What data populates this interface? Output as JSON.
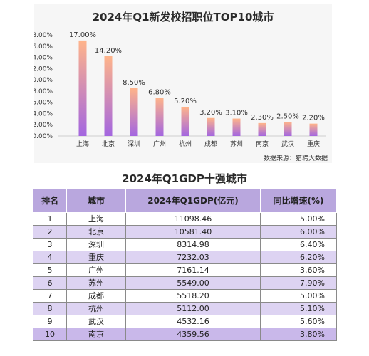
{
  "chart_data": {
    "type": "bar",
    "title": "2024年Q1新发校招职位TOP10城市",
    "categories": [
      "上海",
      "北京",
      "深圳",
      "广州",
      "杭州",
      "成都",
      "苏州",
      "南京",
      "武汉",
      "重庆"
    ],
    "values": [
      17.0,
      14.2,
      8.5,
      6.8,
      5.2,
      3.2,
      3.1,
      2.3,
      2.5,
      2.2
    ],
    "value_labels": [
      "17.00%",
      "14.20%",
      "8.50%",
      "6.80%",
      "5.20%",
      "3.20%",
      "3.10%",
      "2.30%",
      "2.50%",
      "2.20%"
    ],
    "y_ticks": [
      "0.00%",
      "2.00%",
      "4.00%",
      "6.00%",
      "8.00%",
      "10.00%",
      "12.00%",
      "14.00%",
      "16.00%",
      "18.00%"
    ],
    "ylim": [
      0,
      18
    ],
    "grid": false,
    "bar_gradient": [
      "#ffb48a",
      "#a366e0"
    ],
    "source": "数据来源：猎聘大数据"
  },
  "table": {
    "title": "2024年Q1GDP十强城市",
    "headers": [
      "排名",
      "城市",
      "2024年Q1GDP(亿元)",
      "同比增速(%)"
    ],
    "rows": [
      [
        "1",
        "上海",
        "11098.46",
        "5.00%"
      ],
      [
        "2",
        "北京",
        "10581.40",
        "6.00%"
      ],
      [
        "3",
        "深圳",
        "8314.98",
        "6.40%"
      ],
      [
        "4",
        "重庆",
        "7232.03",
        "6.20%"
      ],
      [
        "5",
        "广州",
        "7161.14",
        "3.60%"
      ],
      [
        "6",
        "苏州",
        "5549.00",
        "7.90%"
      ],
      [
        "7",
        "成都",
        "5518.20",
        "5.00%"
      ],
      [
        "8",
        "杭州",
        "5112.00",
        "5.10%"
      ],
      [
        "9",
        "武汉",
        "4532.16",
        "5.60%"
      ],
      [
        "10",
        "南京",
        "4359.56",
        "3.80%"
      ]
    ],
    "header_color": "#b9a7de",
    "band_color": "#ddd3f2"
  }
}
